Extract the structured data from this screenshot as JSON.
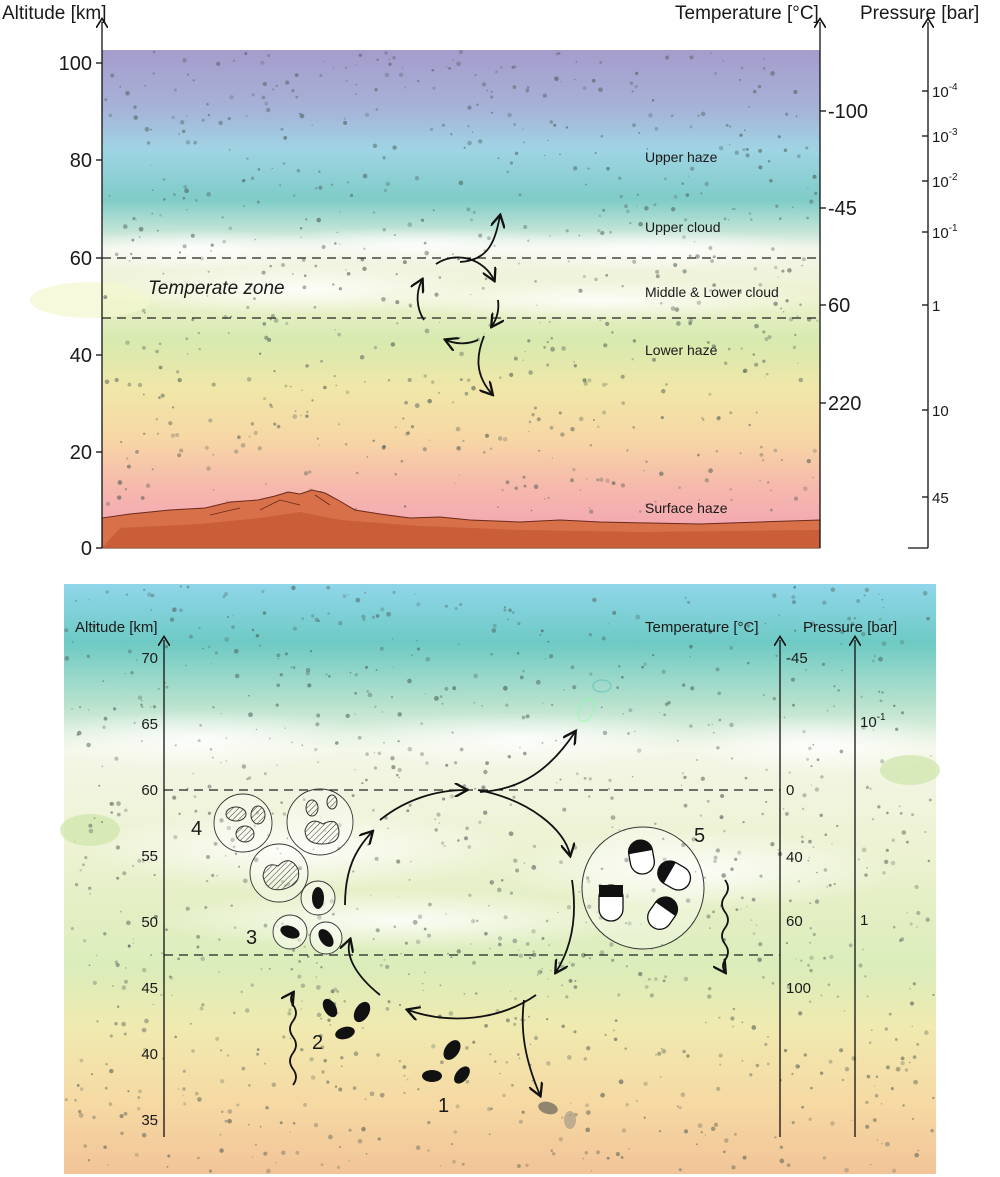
{
  "top_panel": {
    "altitude_label": "Altitude [km]",
    "temperature_label": "Temperature [°C]",
    "pressure_label": "Pressure [bar]",
    "altitude_ticks": [
      "100",
      "80",
      "60",
      "40",
      "20",
      "0"
    ],
    "temperature_ticks": [
      "-100",
      "-45",
      "60",
      "220"
    ],
    "pressure_ticks": [
      {
        "base": "10",
        "exp": "-4"
      },
      {
        "base": "10",
        "exp": "-3"
      },
      {
        "base": "10",
        "exp": "-2"
      },
      {
        "base": "10",
        "exp": "-1"
      },
      {
        "base": "1",
        "exp": ""
      },
      {
        "base": "10",
        "exp": ""
      },
      {
        "base": "45",
        "exp": ""
      }
    ],
    "layers": {
      "upper_haze": "Upper haze",
      "upper_cloud": "Upper cloud",
      "middle_lower_cloud": "Middle & Lower cloud",
      "lower_haze": "Lower haze",
      "surface_haze": "Surface haze"
    },
    "temperate_zone": "Temperate zone"
  },
  "bottom_panel": {
    "altitude_label": "Altitude [km]",
    "temperature_label": "Temperature [°C]",
    "pressure_label": "Pressure [bar]",
    "altitude_ticks": [
      "70",
      "65",
      "60",
      "55",
      "50",
      "45",
      "40",
      "35"
    ],
    "temperature_ticks": [
      "-45",
      "0",
      "40",
      "60",
      "100"
    ],
    "pressure_ticks": [
      {
        "base": "10",
        "exp": "-1"
      },
      {
        "base": "1",
        "exp": ""
      }
    ],
    "stage_labels": [
      "1",
      "2",
      "3",
      "4",
      "5"
    ]
  }
}
